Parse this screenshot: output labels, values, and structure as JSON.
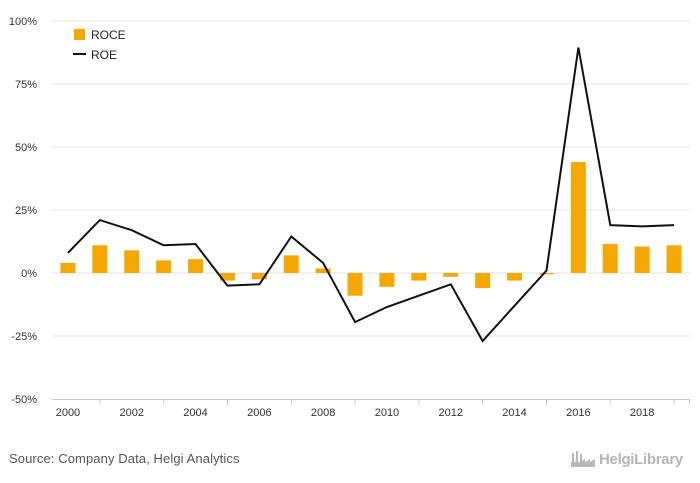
{
  "chart_data": {
    "type": "bar+line",
    "x": [
      2000,
      2001,
      2002,
      2003,
      2004,
      2005,
      2006,
      2007,
      2008,
      2009,
      2010,
      2011,
      2012,
      2013,
      2014,
      2015,
      2016,
      2017,
      2018,
      2019
    ],
    "x_tick_labels": [
      "2000",
      "2002",
      "2004",
      "2006",
      "2008",
      "2010",
      "2012",
      "2014",
      "2016",
      "2018"
    ],
    "series": [
      {
        "name": "ROCE",
        "type": "bar",
        "color": "#f5a800",
        "values": [
          4.0,
          11.0,
          9.0,
          5.0,
          5.5,
          -3.0,
          -2.5,
          7.0,
          1.8,
          -9.0,
          -5.5,
          -3.0,
          -1.5,
          -6.0,
          -3.0,
          -0.5,
          44.0,
          11.5,
          10.5,
          11.0
        ]
      },
      {
        "name": "ROE",
        "type": "line",
        "color": "#111111",
        "values": [
          8.0,
          21.0,
          17.0,
          11.0,
          11.5,
          -5.0,
          -4.5,
          14.5,
          4.0,
          -19.5,
          -13.5,
          -9.0,
          -4.5,
          -27.0,
          -13.0,
          1.0,
          89.5,
          19.0,
          18.5,
          19.0
        ]
      }
    ],
    "y_ticks": [
      "100%",
      "75%",
      "50%",
      "25%",
      "0%",
      "-25%",
      "-50%"
    ],
    "y_tick_values": [
      100,
      75,
      50,
      25,
      0,
      -25,
      -50
    ],
    "ylim": [
      -50,
      100
    ],
    "grid": true,
    "legend_position": "top-left"
  },
  "footer": {
    "source": "Source: Company Data, Helgi Analytics",
    "logo_text": "HelgiLibrary",
    "logo_icon": "factory-icon"
  }
}
